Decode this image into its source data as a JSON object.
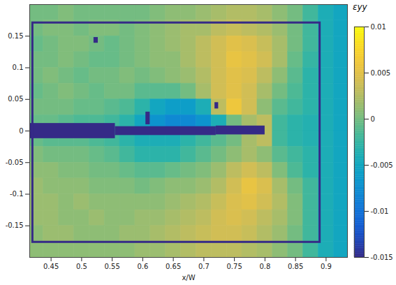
{
  "chart_data": {
    "type": "heatmap",
    "x_label": "x/W",
    "xlim": [
      0.415,
      0.935
    ],
    "xticks": [
      0.45,
      0.5,
      0.55,
      0.6,
      0.65,
      0.7,
      0.75,
      0.8,
      0.85,
      0.9
    ],
    "ylim": [
      -0.2,
      0.2
    ],
    "yticks": [
      -0.15,
      -0.1,
      -0.05,
      0,
      0.05,
      0.1,
      0.15
    ],
    "colorbar": {
      "label": "εyy",
      "range": [
        -0.015,
        0.01
      ],
      "ticks": [
        -0.015,
        -0.01,
        -0.005,
        0,
        0.005,
        0.01
      ]
    },
    "cells": {
      "x": [
        0.425,
        0.45,
        0.475,
        0.5,
        0.525,
        0.55,
        0.575,
        0.6,
        0.625,
        0.65,
        0.675,
        0.7,
        0.725,
        0.75,
        0.775,
        0.8,
        0.825,
        0.85,
        0.875,
        0.9,
        0.925
      ],
      "y": [
        0.1875,
        0.1625,
        0.1375,
        0.1125,
        0.0875,
        0.0625,
        0.0375,
        0.0125,
        -0.0125,
        -0.0375,
        -0.0625,
        -0.0875,
        -0.1125,
        -0.1375,
        -0.1625,
        -0.1875
      ],
      "values": [
        [
          0,
          0,
          0.0005,
          0,
          0,
          0,
          0,
          0,
          0.0005,
          0.001,
          0.001,
          0.0015,
          0.002,
          0.0025,
          0.0025,
          0.002,
          0.001,
          0,
          -0.002,
          -0.004,
          -0.005
        ],
        [
          0,
          0.0005,
          0.0005,
          0,
          0.0005,
          0.0005,
          0,
          0.0005,
          0.001,
          0.0015,
          0.002,
          0.002,
          0.003,
          0.0035,
          0.003,
          0.0025,
          0.0015,
          0,
          -0.002,
          -0.004,
          -0.005
        ],
        [
          -0.0005,
          0,
          0.0005,
          0.0005,
          0,
          -0.0005,
          0,
          0.0005,
          0.001,
          0.0015,
          0.002,
          0.003,
          0.004,
          0.005,
          0.0045,
          0.0035,
          0.002,
          0,
          -0.002,
          -0.004,
          -0.005
        ],
        [
          0,
          0,
          0.0005,
          0,
          -0.0005,
          -0.0005,
          0,
          0.0005,
          0.001,
          0.001,
          0.002,
          0.003,
          0.004,
          0.0055,
          0.005,
          0.004,
          0.002,
          -0.0005,
          -0.0025,
          -0.004,
          -0.005
        ],
        [
          0,
          0.0005,
          0,
          -0.0005,
          0,
          0,
          0.0005,
          0,
          0.0005,
          0.001,
          0.0015,
          0.0025,
          0.004,
          0.005,
          0.0045,
          0.003,
          0.001,
          -0.001,
          -0.003,
          -0.004,
          -0.005
        ],
        [
          -0.0005,
          0,
          0.0005,
          0,
          -0.0005,
          0,
          0,
          -0.001,
          -0.001,
          -0.001,
          0,
          0.002,
          0.004,
          0.005,
          0.004,
          0.002,
          0,
          -0.0015,
          -0.003,
          -0.004,
          -0.005
        ],
        [
          0,
          0,
          0,
          -0.0005,
          -0.0005,
          -0.001,
          -0.0015,
          -0.003,
          -0.005,
          -0.006,
          -0.006,
          -0.004,
          0.003,
          0.006,
          0.004,
          0.001,
          -0.001,
          -0.002,
          -0.003,
          -0.004,
          -0.005
        ],
        [
          -0.0005,
          -0.0005,
          -0.001,
          -0.0015,
          -0.0015,
          -0.002,
          -0.003,
          -0.005,
          -0.007,
          -0.008,
          -0.008,
          -0.007,
          -0.004,
          0,
          0.002,
          0.003,
          -0.002,
          -0.003,
          -0.0035,
          -0.004,
          -0.005
        ],
        [
          -0.0005,
          -0.001,
          -0.001,
          -0.001,
          -0.0015,
          -0.002,
          -0.003,
          -0.004,
          -0.004,
          -0.004,
          -0.003,
          -0.002,
          -0.001,
          0,
          0.002,
          0.003,
          -0.002,
          -0.003,
          -0.0035,
          -0.004,
          -0.005
        ],
        [
          0.0005,
          0,
          0,
          0,
          -0.0005,
          -0.001,
          -0.002,
          -0.003,
          -0.003,
          -0.003,
          -0.002,
          -0.001,
          0,
          0.001,
          0.002,
          0.001,
          -0.001,
          -0.002,
          -0.003,
          -0.004,
          -0.005
        ],
        [
          0.001,
          0.001,
          0.0005,
          0.0005,
          0,
          0,
          -0.0005,
          -0.001,
          -0.001,
          -0.0005,
          0,
          0.0005,
          0.0015,
          0.003,
          0.004,
          0.003,
          0.0005,
          -0.0015,
          -0.003,
          -0.004,
          -0.005
        ],
        [
          0.0015,
          0.001,
          0.001,
          0.001,
          0.0005,
          0.0005,
          0.0005,
          0,
          0.0005,
          0.001,
          0.001,
          0.0015,
          0.0025,
          0.004,
          0.0055,
          0.0045,
          0.002,
          0,
          -0.002,
          -0.004,
          -0.005
        ],
        [
          0.0015,
          0.0015,
          0.001,
          0.0015,
          0.001,
          0.001,
          0.001,
          0.001,
          0.001,
          0.0015,
          0.002,
          0.0025,
          0.0035,
          0.0045,
          0.005,
          0.004,
          0.0025,
          0.0005,
          -0.002,
          -0.004,
          -0.005
        ],
        [
          0.0015,
          0.0015,
          0.001,
          0.001,
          0.0015,
          0.001,
          0.001,
          0.0015,
          0.0015,
          0.002,
          0.0025,
          0.003,
          0.004,
          0.0045,
          0.004,
          0.003,
          0.002,
          0.0005,
          -0.002,
          -0.004,
          -0.005
        ],
        [
          0.001,
          0.0015,
          0.0015,
          0.001,
          0.001,
          0.001,
          0.0015,
          0.0015,
          0.002,
          0.0025,
          0.003,
          0.0035,
          0.004,
          0.004,
          0.0035,
          0.0025,
          0.0015,
          0,
          -0.002,
          -0.004,
          -0.005
        ],
        [
          0.001,
          0.001,
          0.001,
          0.001,
          0.001,
          0.001,
          0.001,
          0.0015,
          0.0015,
          0.002,
          0.0025,
          0.003,
          0.003,
          0.003,
          0.0025,
          0.002,
          0.001,
          0,
          -0.002,
          -0.004,
          -0.005
        ]
      ]
    },
    "masked": [
      {
        "x": [
          0.415,
          0.555
        ],
        "y": [
          -0.012,
          0.012
        ]
      },
      {
        "x": [
          0.555,
          0.72
        ],
        "y": [
          -0.007,
          0.007
        ]
      },
      {
        "x": [
          0.72,
          0.8
        ],
        "y": [
          -0.006,
          0.008
        ]
      },
      {
        "x": [
          0.52,
          0.527
        ],
        "y": [
          0.139,
          0.148
        ]
      },
      {
        "x": [
          0.605,
          0.612
        ],
        "y": [
          0.01,
          0.03
        ]
      },
      {
        "x": [
          0.718,
          0.724
        ],
        "y": [
          0.035,
          0.045
        ]
      }
    ],
    "region": {
      "x": [
        0.42,
        0.89
      ],
      "y": [
        -0.176,
        0.171
      ]
    }
  }
}
